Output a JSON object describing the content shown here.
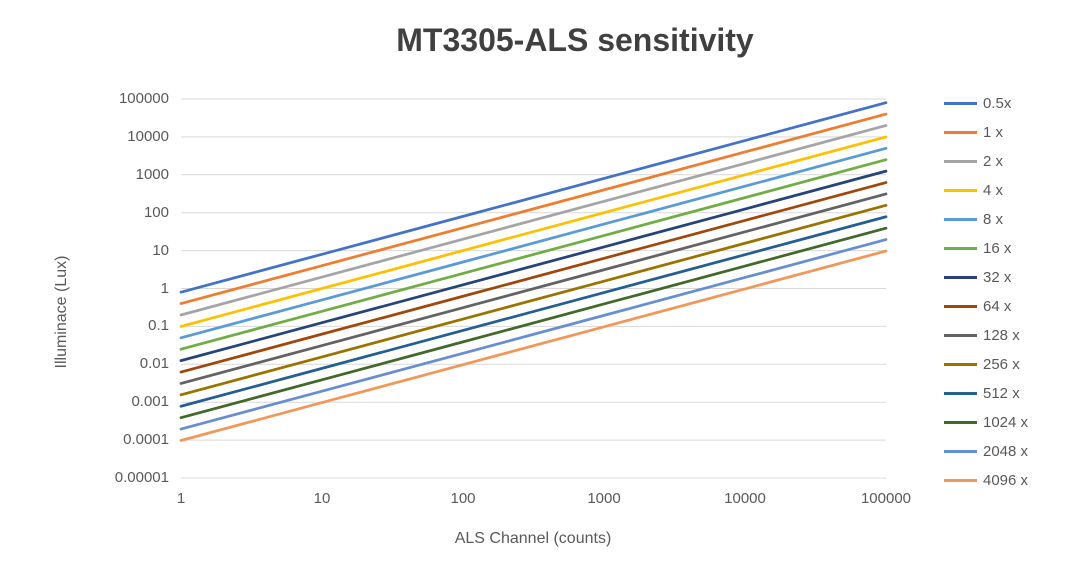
{
  "theme": {
    "background": "#FFFFFF",
    "title_color": "#404040",
    "text_color": "#595959",
    "grid_color": "#D9D9D9"
  },
  "chart_data": {
    "type": "line",
    "title": "MT3305-ALS sensitivity",
    "xlabel": "ALS Channel (counts)",
    "ylabel": "Illuminace (Lux)",
    "x_scale": "log",
    "y_scale": "log",
    "xlim": [
      1,
      100000
    ],
    "ylim": [
      1e-05,
      100000
    ],
    "grid": "horizontal",
    "legend_position": "right",
    "x_tick_labels": [
      "1",
      "10",
      "100",
      "1000",
      "10000",
      "100000"
    ],
    "y_tick_labels": [
      "100000",
      "10000",
      "1000",
      "100",
      "10",
      "1",
      "0.1",
      "0.01",
      "0.001",
      "0.0001",
      "0.00001"
    ],
    "x": [
      1,
      10,
      100,
      1000,
      10000,
      100000
    ],
    "series": [
      {
        "name": "0.5x",
        "gain": 0.5,
        "sensitivity_lux_per_count": 0.8,
        "color": "#4472C4",
        "values": [
          0.8,
          8,
          80,
          800,
          8000,
          80000
        ]
      },
      {
        "name": "1 x",
        "gain": 1,
        "sensitivity_lux_per_count": 0.4,
        "color": "#ED7D31",
        "values": [
          0.4,
          4,
          40,
          400,
          4000,
          40000
        ]
      },
      {
        "name": "2 x",
        "gain": 2,
        "sensitivity_lux_per_count": 0.2,
        "color": "#A5A5A5",
        "values": [
          0.2,
          2,
          20,
          200,
          2000,
          20000
        ]
      },
      {
        "name": "4 x",
        "gain": 4,
        "sensitivity_lux_per_count": 0.1,
        "color": "#FFC000",
        "values": [
          0.1,
          1,
          10,
          100,
          1000,
          10000
        ]
      },
      {
        "name": "8 x",
        "gain": 8,
        "sensitivity_lux_per_count": 0.05,
        "color": "#5B9BD5",
        "values": [
          0.05,
          0.5,
          5,
          50,
          500,
          5000
        ]
      },
      {
        "name": "16 x",
        "gain": 16,
        "sensitivity_lux_per_count": 0.025,
        "color": "#70AD47",
        "values": [
          0.025,
          0.25,
          2.5,
          25,
          250,
          2500
        ]
      },
      {
        "name": "32 x",
        "gain": 32,
        "sensitivity_lux_per_count": 0.0125,
        "color": "#264478",
        "values": [
          0.0125,
          0.125,
          1.25,
          12.5,
          125,
          1250
        ]
      },
      {
        "name": "64 x",
        "gain": 64,
        "sensitivity_lux_per_count": 0.00625,
        "color": "#9E480E",
        "values": [
          0.00625,
          0.0625,
          0.625,
          6.25,
          62.5,
          625
        ]
      },
      {
        "name": "128 x",
        "gain": 128,
        "sensitivity_lux_per_count": 0.003125,
        "color": "#636363",
        "values": [
          0.003125,
          0.03125,
          0.3125,
          3.125,
          31.25,
          312.5
        ]
      },
      {
        "name": "256 x",
        "gain": 256,
        "sensitivity_lux_per_count": 0.0015625,
        "color": "#997300",
        "values": [
          0.0015625,
          0.015625,
          0.15625,
          1.5625,
          15.625,
          156.25
        ]
      },
      {
        "name": "512 x",
        "gain": 512,
        "sensitivity_lux_per_count": 0.00078125,
        "color": "#255E91",
        "values": [
          0.00078125,
          0.0078125,
          0.078125,
          0.78125,
          7.8125,
          78.125
        ]
      },
      {
        "name": "1024 x",
        "gain": 1024,
        "sensitivity_lux_per_count": 0.000390625,
        "color": "#43682B",
        "values": [
          0.000390625,
          0.00390625,
          0.0390625,
          0.390625,
          3.90625,
          39.0625
        ]
      },
      {
        "name": "2048 x",
        "gain": 2048,
        "sensitivity_lux_per_count": 0.0001953125,
        "color": "#698ED0",
        "values": [
          0.0001953125,
          0.001953125,
          0.01953125,
          0.1953125,
          1.953125,
          19.53125
        ]
      },
      {
        "name": "4096 x",
        "gain": 4096,
        "sensitivity_lux_per_count": 9.765625e-05,
        "color": "#F1975A",
        "values": [
          9.765625e-05,
          0.0009765625,
          0.009765625,
          0.09765625,
          0.9765625,
          9.765625
        ]
      }
    ]
  }
}
